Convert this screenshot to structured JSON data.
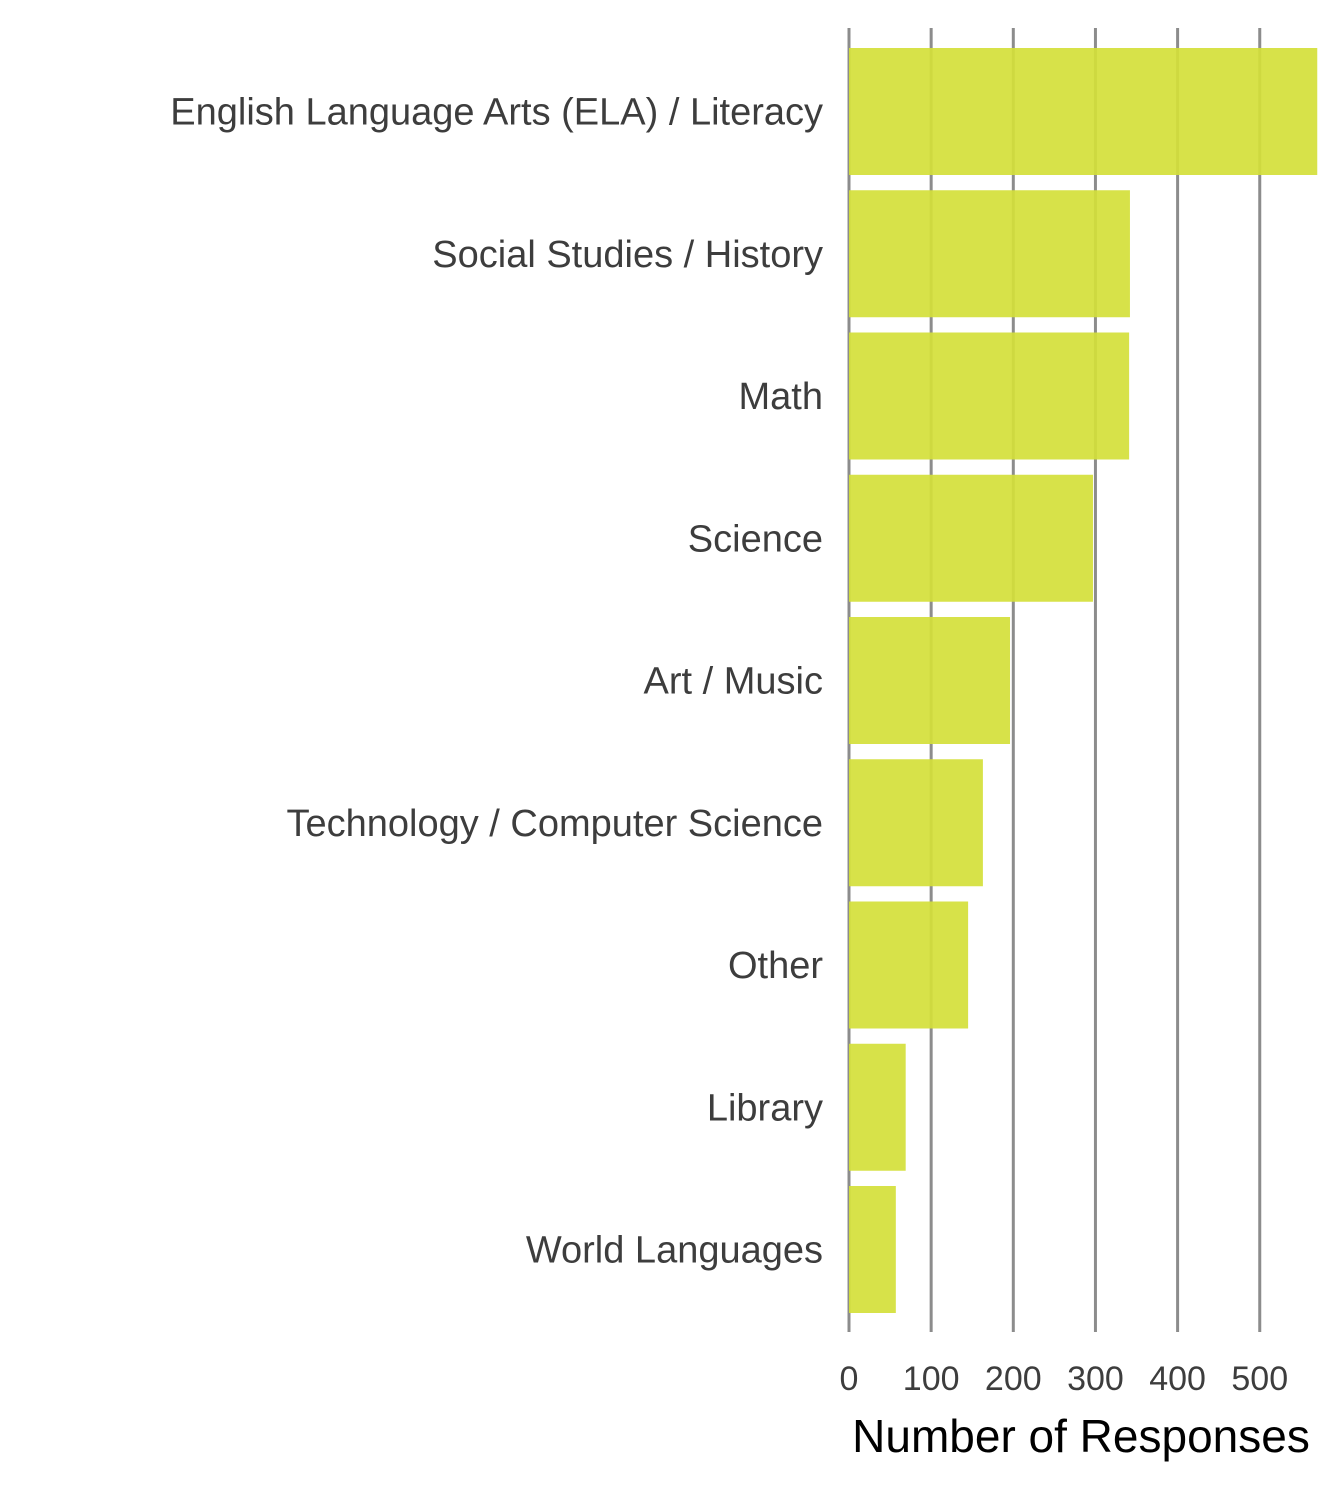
{
  "chart_data": {
    "type": "bar",
    "orientation": "horizontal",
    "categories": [
      "English Language Arts (ELA) / Literacy",
      "Social Studies / History",
      "Math",
      "Science",
      "Art / Music",
      "Technology / Computer Science",
      "Other",
      "Library",
      "World Languages"
    ],
    "values": [
      570,
      342,
      341,
      297,
      196,
      163,
      145,
      69,
      57
    ],
    "title": "",
    "xlabel": "Number of Responses",
    "ylabel": "",
    "xlim": [
      0,
      580
    ],
    "xticks": [
      "0",
      "100",
      "200",
      "300",
      "400",
      "500"
    ],
    "grid": "vertical major",
    "legend": "none",
    "bar_color": "#d4e03a"
  }
}
